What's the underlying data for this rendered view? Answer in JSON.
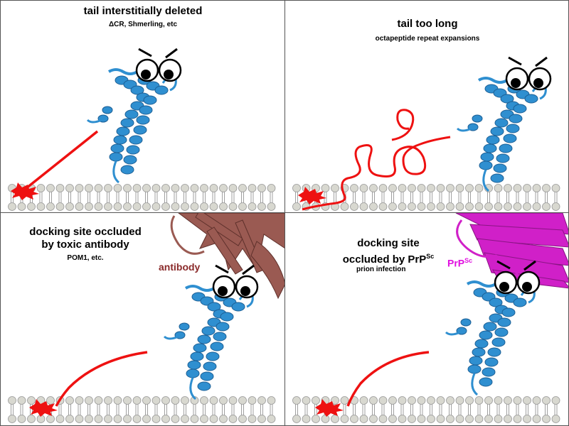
{
  "panels": {
    "top_left": {
      "title": "tail interstitially deleted",
      "subtitle": "ΔCR, Shmerling, etc"
    },
    "top_right": {
      "title": "tail too long",
      "subtitle": "octapeptide repeat expansions"
    },
    "bottom_left": {
      "title_line1": "docking site occluded",
      "title_line2": "by toxic antibody",
      "subtitle": "POM1, etc.",
      "label": "antibody"
    },
    "bottom_right": {
      "title_line1": "docking site",
      "title_line2_prefix": "occluded by PrP",
      "title_line2_sup": "Sc",
      "subtitle": "prion infection",
      "label_prefix": "PrP",
      "label_sup": "Sc"
    }
  },
  "colors": {
    "protein": "#2f8fd0",
    "protein_dark": "#1c5f95",
    "tail": "#ee1111",
    "membrane_head": "#d8d8d0",
    "antibody": "#9a5a52",
    "prpsc": "#d020c8"
  }
}
